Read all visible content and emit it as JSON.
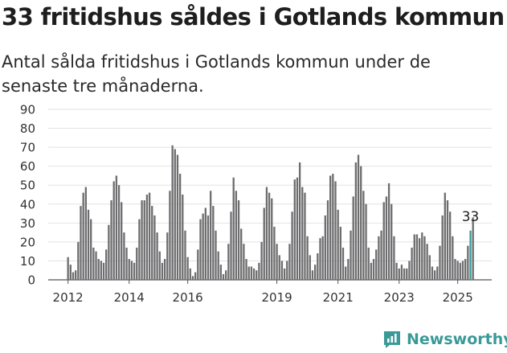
{
  "title": "33 fritidshus såldes i Gotlands kommun",
  "subtitle": "Antal sålda fritidshus i Gotlands kommun under de senaste tre månaderna.",
  "brand": {
    "name": "Newsworthy",
    "icon": "newsworthy-logo-icon",
    "color": "#3a9a97"
  },
  "chart_data": {
    "type": "bar",
    "title": "",
    "xlabel": "",
    "ylabel": "",
    "ylim": [
      0,
      90
    ],
    "yticks": [
      0,
      10,
      20,
      30,
      40,
      50,
      60,
      70,
      80,
      90
    ],
    "yticklabels": [
      "0",
      "10",
      "20",
      "30",
      "40",
      "50",
      "60",
      "70",
      "80",
      "90"
    ],
    "xticklabels": [
      "2012",
      "2014",
      "2016",
      "2019",
      "2021",
      "2023",
      "2025"
    ],
    "xtick_index": [
      0,
      24,
      47,
      82,
      106,
      130,
      153
    ],
    "grid": true,
    "bar_color": "#6d6d6f",
    "highlight_color": "#3a9a97",
    "highlight_index": 158,
    "annotation": {
      "index": 158,
      "text": "33"
    },
    "values": [
      12,
      8,
      4,
      5,
      20,
      39,
      46,
      49,
      37,
      32,
      17,
      15,
      11,
      10,
      9,
      16,
      29,
      42,
      52,
      55,
      50,
      41,
      25,
      17,
      11,
      10,
      9,
      17,
      32,
      42,
      42,
      45,
      46,
      39,
      34,
      25,
      15,
      9,
      11,
      25,
      47,
      71,
      69,
      66,
      56,
      45,
      26,
      12,
      6,
      2,
      4,
      16,
      32,
      35,
      38,
      34,
      47,
      39,
      26,
      15,
      8,
      3,
      5,
      19,
      36,
      54,
      47,
      42,
      27,
      19,
      11,
      7,
      7,
      6,
      5,
      9,
      20,
      38,
      49,
      46,
      43,
      28,
      19,
      13,
      10,
      6,
      10,
      19,
      36,
      53,
      54,
      62,
      49,
      46,
      23,
      13,
      5,
      8,
      14,
      22,
      23,
      34,
      42,
      55,
      56,
      52,
      37,
      28,
      17,
      7,
      11,
      26,
      44,
      62,
      66,
      60,
      47,
      40,
      17,
      9,
      11,
      16,
      23,
      26,
      41,
      44,
      51,
      40,
      23,
      9,
      6,
      8,
      6,
      6,
      10,
      17,
      24,
      24,
      22,
      25,
      23,
      19,
      13,
      7,
      5,
      7,
      18,
      34,
      46,
      42,
      36,
      23,
      11,
      10,
      9,
      10,
      11,
      18,
      26,
      33
    ]
  }
}
